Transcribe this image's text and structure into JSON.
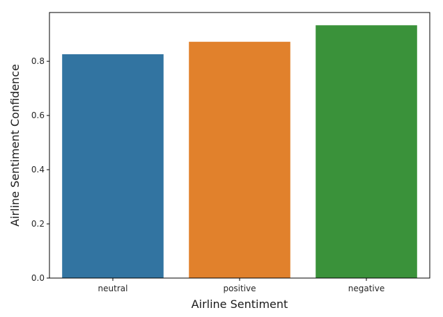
{
  "chart_data": {
    "type": "bar",
    "categories": [
      "neutral",
      "positive",
      "negative"
    ],
    "values": [
      0.826,
      0.872,
      0.933
    ],
    "colors": [
      "#3274a1",
      "#e1812c",
      "#3a923a"
    ],
    "title": "",
    "xlabel": "Airline Sentiment",
    "ylabel": "Airline Sentiment Confidence",
    "ylim": [
      0,
      0.98
    ],
    "yticks": [
      0.0,
      0.2,
      0.4,
      0.6,
      0.8
    ],
    "ytick_labels": [
      "0.0",
      "0.2",
      "0.4",
      "0.6",
      "0.8"
    ],
    "grid": false,
    "legend": "none"
  }
}
